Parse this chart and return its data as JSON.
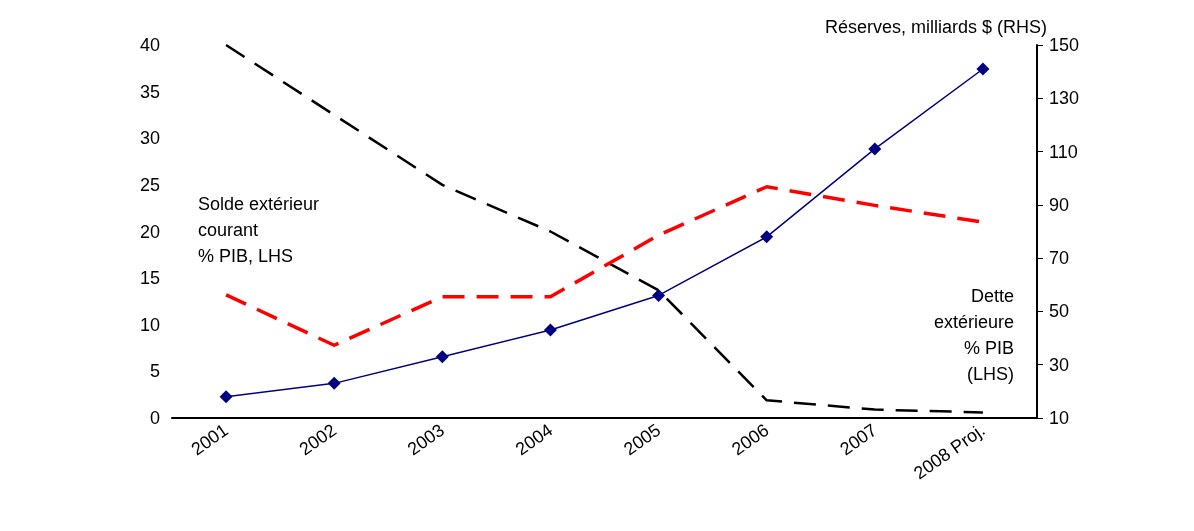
{
  "chart_data": {
    "type": "line",
    "categories": [
      "2001",
      "2002",
      "2003",
      "2004",
      "2005",
      "2006",
      "2007",
      "2008 Proj."
    ],
    "y2label": "Réserves, milliards $ (RHS)",
    "ylim": [
      0,
      40
    ],
    "yticks": [
      0,
      5,
      10,
      15,
      20,
      25,
      30,
      35,
      40
    ],
    "y2lim": [
      10,
      150
    ],
    "y2ticks": [
      10,
      30,
      50,
      70,
      90,
      110,
      130,
      150
    ],
    "series": [
      {
        "color": "#000080",
        "axis": "y2",
        "marker": "diamond",
        "line_style": "solid",
        "values": [
          18,
          23,
          33,
          43,
          56,
          78,
          111,
          141
        ]
      },
      {
        "color": "#ff0000",
        "marker": "none",
        "line_style": "dashed",
        "values": [
          13.2,
          7.8,
          13,
          13,
          19.6,
          24.8,
          22.8,
          21
        ]
      },
      {
        "color": "#000000",
        "marker": "none",
        "line_style": "dashed",
        "values": [
          40,
          32.5,
          25,
          20,
          13.7,
          1.9,
          0.9,
          0.6
        ]
      }
    ],
    "annotations": [
      "Solde extérieur\ncourant\n% PIB, LHS",
      "Dette\nextérieure\n% PIB\n(LHS)"
    ],
    "grid": false
  }
}
